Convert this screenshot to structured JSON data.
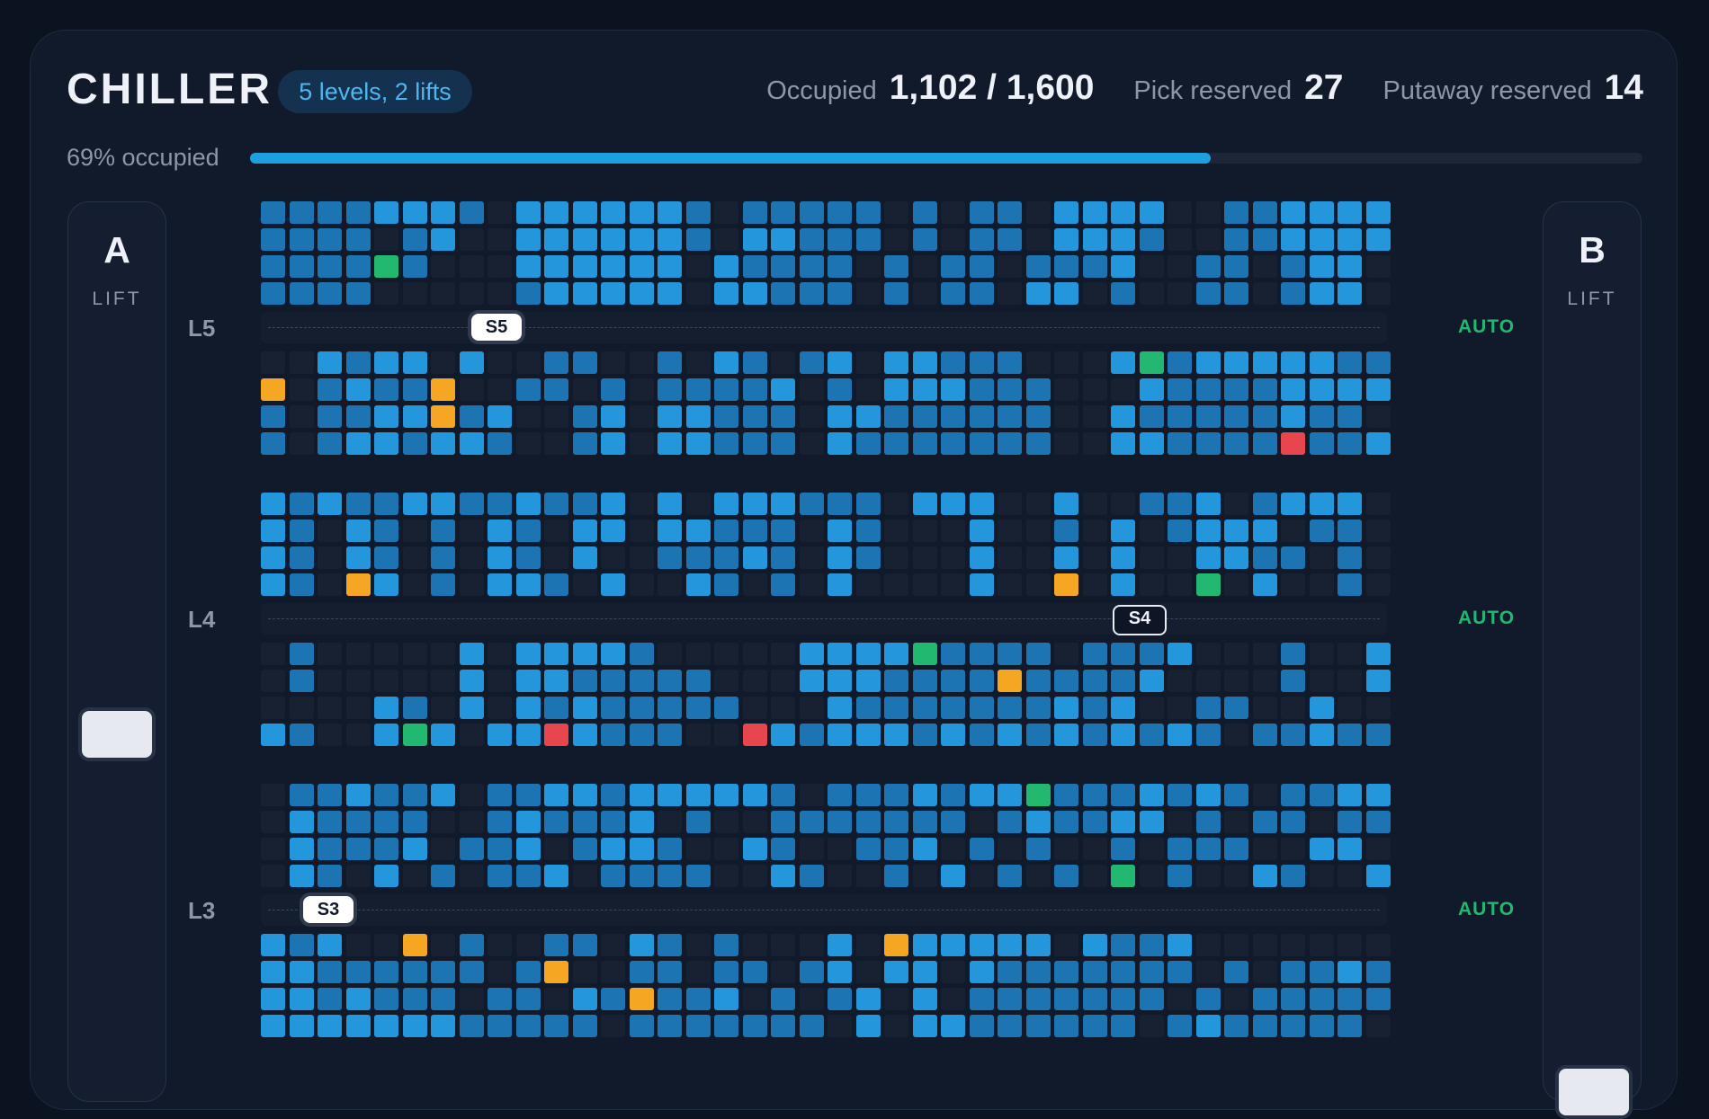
{
  "header": {
    "title": "CHILLER",
    "badge": "5 levels, 2 lifts",
    "occupied_label": "Occupied",
    "occupied_value": "1,102 / 1,600",
    "pick_label": "Pick reserved",
    "pick_value": "27",
    "putaway_label": "Putaway reserved",
    "putaway_value": "14"
  },
  "occupancy": {
    "label": "69% occupied",
    "fraction": 0.69
  },
  "lifts": [
    {
      "letter": "A",
      "label": "LIFT",
      "carriage_visible": true
    },
    {
      "letter": "B",
      "label": "LIFT",
      "carriage_visible": true
    }
  ],
  "levels": [
    {
      "label": "L5",
      "mode": "AUTO",
      "shuttle": "S5",
      "shuttle_style": "light"
    },
    {
      "label": "L4",
      "mode": "AUTO",
      "shuttle": "S4",
      "shuttle_style": "dark"
    },
    {
      "label": "L3",
      "mode": "AUTO",
      "shuttle": "S3",
      "shuttle_style": "light"
    }
  ],
  "colors": {
    "empty": "#172132",
    "occupied_light": "#2396dc",
    "occupied_dark": "#1c74b2",
    "pick": "#f5a623",
    "putaway": "#23b870",
    "fault": "#e8464f",
    "accent": "#1e9fe0"
  },
  "legend_codes": "0=empty, 1=occupied (light), 2=occupied (dark), P=pick reserved, G=putaway reserved, R=fault",
  "racks": [
    [
      "22221112.1111112.22222.2.22.1111..221111",
      "2222.21..1111112.11222.2.22.1112..221111",
      "2222G2...111111.12222.2.22.2221..22.211",
      "2222.....211111.11222.2.22.11.2..22.211"
    ],
    [
      "..1211.1..22..2.12.21.11222...1G21111122",
      "P.2122P..22.2.22221.2.111222...1222211111",
      "2.2211P21..21.11222.11222222..122222122",
      "2.2112112..21.11222.12222222..112222R221"
    ],
    [
      "1212211221221.1.111222.111..1..221.2111.2",
      "12.12.2.12.11.11222.12...1..2.1.2111.22",
      "12.12.2.12.1..22212.12...1..1.1..1122.2",
      "12.P1.2.112.1..12.2.1....1..P.1..G.1..2"
    ],
    [
      ".2.....1.11112.....1111G2222.2221...2..1.",
      ".2.....1.1122222...1112222P22221....2..1.",
      "....12.1.12122222...12222222121..22..1.",
      "12..1G1.11R1222..R1211121212121212.221221"
    ],
    [
      ".221221.22112111112.2221211G2221212.22111",
      ".12222..212221.2..2222222.212211.2.22.22",
      ".12221.221.2112..12..221.2.2..2.222..11.2",
      ".12.1.2.221.2222..12..2.1.2.2.G.2..12..112"
    ],
    [
      "121..P.2..22.12.2...1.P11111.1221..",
      "11222222.2P..22.22.21.11.12222222.2.22122.",
      "1121222.22.12P221.2.21.1.2222222.2.22222.",
      "111111122222.2222222.1.11222222.2122222."
    ]
  ]
}
